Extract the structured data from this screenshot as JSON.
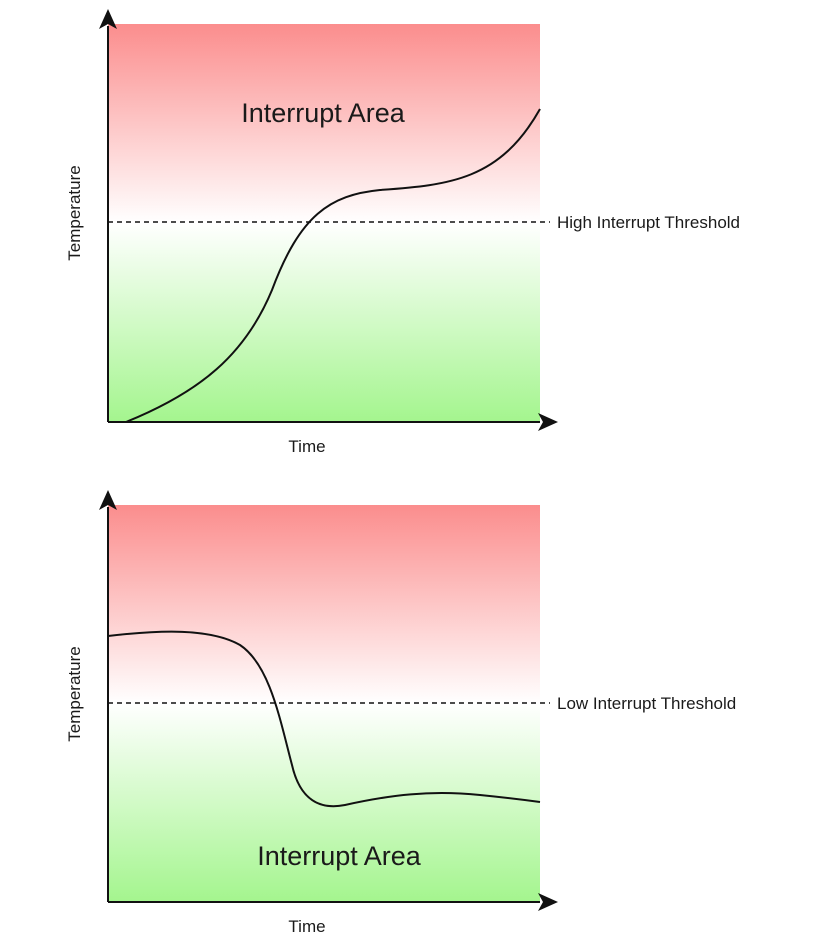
{
  "diagrams": [
    {
      "interrupt_area_label": "Interrupt Area",
      "threshold_label": "High Interrupt Threshold",
      "y_axis_label": "Temperature",
      "x_axis_label": "Time"
    },
    {
      "interrupt_area_label": "Interrupt Area",
      "threshold_label": "Low Interrupt Threshold",
      "y_axis_label": "Temperature",
      "x_axis_label": "Time"
    }
  ],
  "colors": {
    "hot": "#fb8d8d",
    "neutral": "#ffffff",
    "cold": "#a4f58e",
    "line": "#111111"
  }
}
